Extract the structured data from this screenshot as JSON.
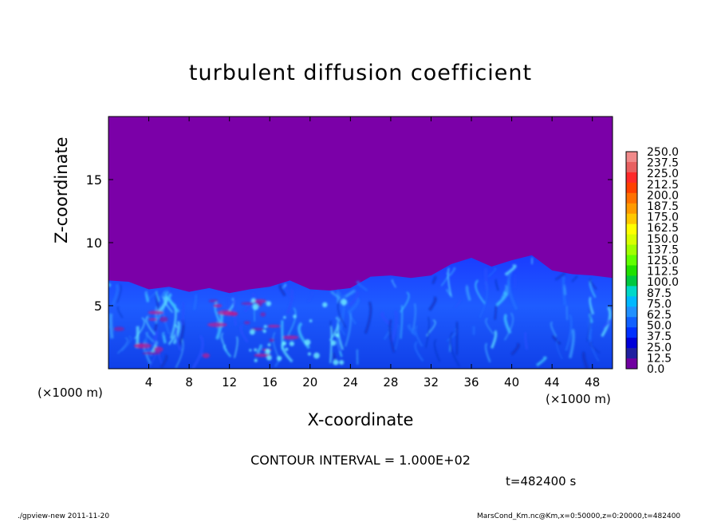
{
  "chart_data": {
    "type": "heatmap",
    "title": "turbulent diffusion coefficient",
    "xlabel": "X-coordinate",
    "ylabel": "Z-coordinate",
    "x_scale_note": "(×1000 m)",
    "y_scale_note": "(×1000 m)",
    "xlim": [
      0,
      50
    ],
    "ylim": [
      0,
      20
    ],
    "x_ticks": [
      4,
      8,
      12,
      16,
      20,
      24,
      28,
      32,
      36,
      40,
      44,
      48
    ],
    "y_ticks": [
      5,
      10,
      15
    ],
    "colorbar": {
      "levels": [
        "250.0",
        "237.5",
        "225.0",
        "212.5",
        "200.0",
        "187.5",
        "175.0",
        "162.5",
        "150.0",
        "137.5",
        "125.0",
        "112.5",
        "100.0",
        "87.5",
        "75.0",
        "62.5",
        "50.0",
        "37.5",
        "25.0",
        "12.5",
        "0.0"
      ],
      "colors": [
        "#f08a8a",
        "#e86060",
        "#ff2a2a",
        "#ff4000",
        "#ff7000",
        "#ff9a00",
        "#ffc800",
        "#ffff00",
        "#d8ff00",
        "#a0ff00",
        "#60ff00",
        "#20e000",
        "#00c840",
        "#00d8c8",
        "#00b8ff",
        "#2090ff",
        "#1060ff",
        "#0030ff",
        "#0000d8",
        "#2020a0",
        "#7000a0"
      ]
    },
    "background_value": "0.0",
    "background_color": "#7b00a8",
    "turbulent_layer_top_km": {
      "x": [
        0,
        2,
        4,
        6,
        8,
        10,
        12,
        14,
        16,
        18,
        20,
        22,
        24,
        26,
        28,
        30,
        32,
        34,
        36,
        38,
        40,
        42,
        44,
        46,
        48,
        50
      ],
      "z": [
        7.0,
        6.9,
        6.3,
        6.5,
        6.1,
        6.4,
        6.0,
        6.3,
        6.5,
        7.0,
        6.3,
        6.2,
        6.4,
        7.3,
        7.4,
        7.2,
        7.4,
        8.3,
        8.8,
        8.1,
        8.6,
        9.0,
        7.8,
        7.5,
        7.4,
        7.2
      ]
    }
  },
  "contour_interval": "CONTOUR INTERVAL = 1.000E+02",
  "time": "t=482400 s",
  "footer": {
    "left": "./gpview-new  2011-11-20",
    "right": "MarsCond_Km.nc@Km,x=0:50000,z=0:20000,t=482400"
  }
}
